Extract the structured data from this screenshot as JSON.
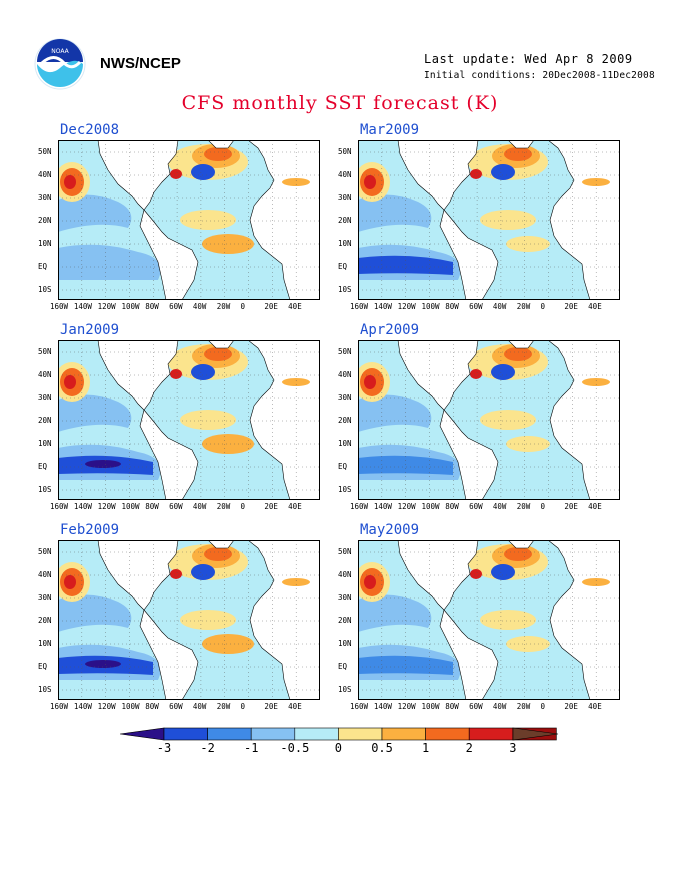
{
  "header": {
    "org": "NWS/NCEP",
    "last_update": "Last update: Wed Apr 8 2009",
    "initial_conditions": "Initial conditions: 20Dec2008-11Dec2008",
    "title": "CFS monthly SST forecast (K)"
  },
  "panels": [
    {
      "id": "dec",
      "label": "Dec2008"
    },
    {
      "id": "mar",
      "label": "Mar2009"
    },
    {
      "id": "jan",
      "label": "Jan2009"
    },
    {
      "id": "apr",
      "label": "Apr2009"
    },
    {
      "id": "feb",
      "label": "Feb2009"
    },
    {
      "id": "may",
      "label": "May2009"
    }
  ],
  "lat_ticks": [
    "50N",
    "40N",
    "30N",
    "20N",
    "10N",
    "EQ",
    "10S"
  ],
  "lon_ticks": [
    "160W",
    "140W",
    "120W",
    "100W",
    "80W",
    "60W",
    "40W",
    "20W",
    "0",
    "20E",
    "40E"
  ],
  "colorbar": {
    "labels": [
      "-3",
      "-2",
      "-1",
      "-0.5",
      "0",
      "0.5",
      "1",
      "2",
      "3"
    ],
    "colors": [
      "#2b1088",
      "#1f4fd8",
      "#3f8ae6",
      "#86c1f2",
      "#b6ecf7",
      "#fbe48d",
      "#fbb040",
      "#f36a1f",
      "#d71d1d",
      "#9b0e0e",
      "#6b3d2a"
    ]
  }
}
